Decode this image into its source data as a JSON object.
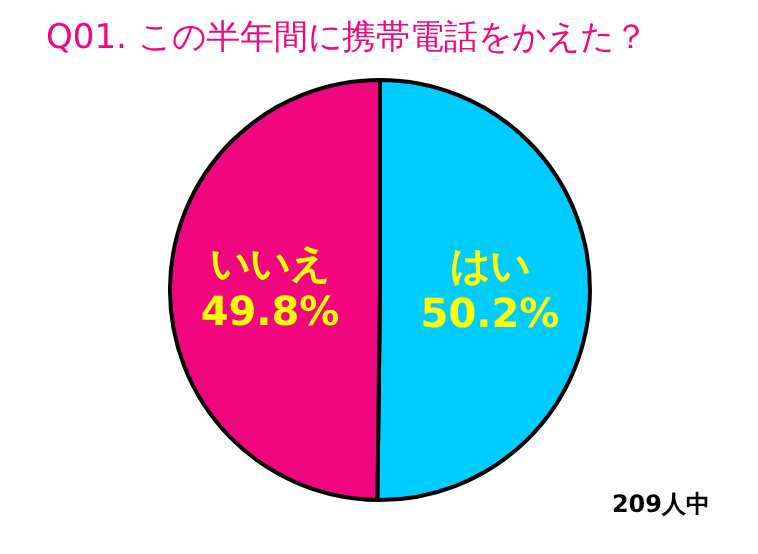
{
  "chart_data": {
    "type": "pie",
    "title": "Q01. この半年間に携帯電話をかえた？",
    "categories": [
      "はい",
      "いいえ"
    ],
    "values": [
      50.2,
      49.8
    ],
    "value_labels": [
      "50.2%",
      "49.8%"
    ],
    "colors": [
      "#00ccff",
      "#f0077f"
    ],
    "annotations": [
      "209人中"
    ]
  }
}
